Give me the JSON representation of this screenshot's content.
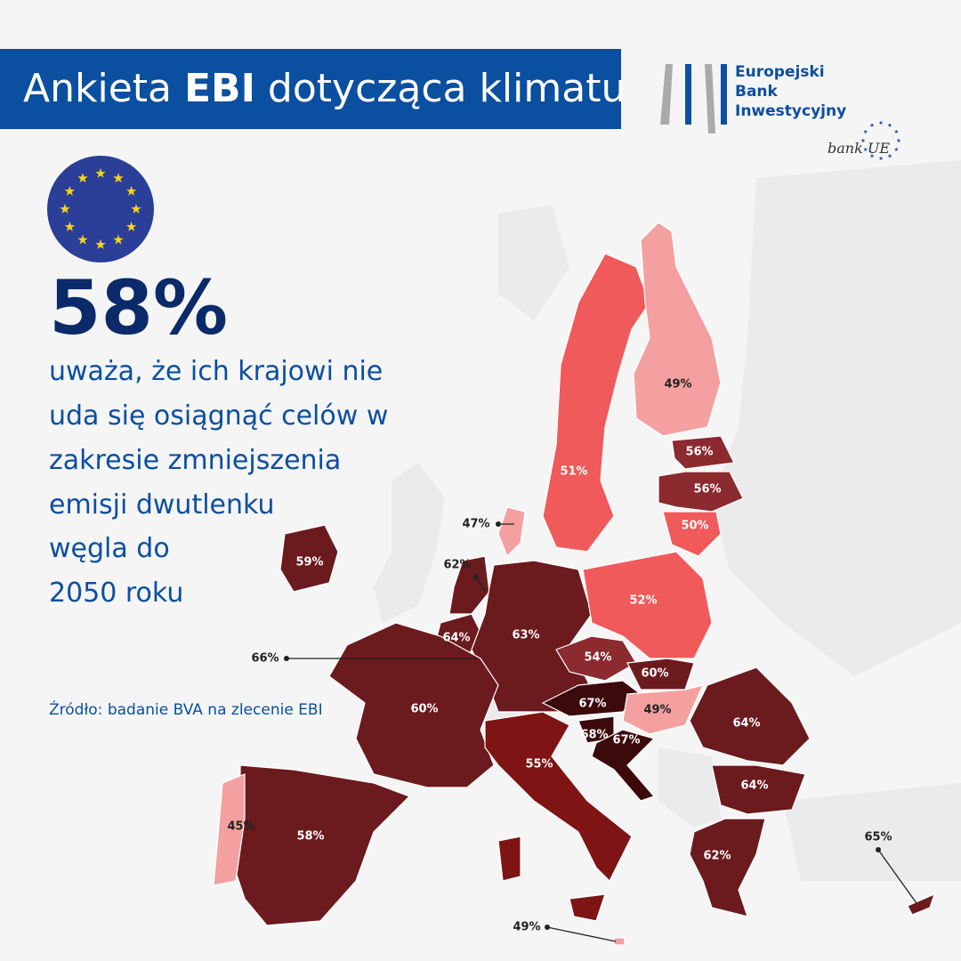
{
  "header": {
    "title_parts": [
      "Ankieta ",
      "EBI",
      " dotycząca klimatu"
    ]
  },
  "logo": {
    "lines": [
      "Europejski",
      "Bank",
      "Inwestycyjny"
    ],
    "tagline": "bank UE"
  },
  "headline": {
    "stat": "58%",
    "text_lines": [
      "uważa, że ich krajowi nie",
      "uda się osiągnąć celów w",
      "zakresie zmniejszenia",
      "emisji dwutlenku",
      "węgla do",
      "2050 roku"
    ]
  },
  "source": "Źródło: badanie BVA na zlecenie EBI",
  "regions": [
    {
      "label": "51%",
      "color": "#f05a5a"
    },
    {
      "label": "49%",
      "color": "#f4a0a0"
    },
    {
      "label": "56%",
      "color": "#8b2a2f"
    },
    {
      "label": "56%",
      "color": "#8b2a2f"
    },
    {
      "label": "50%",
      "color": "#f05a5a"
    },
    {
      "label": "47%",
      "color": "#f4a0a0"
    },
    {
      "label": "59%",
      "color": "#6b1a1e"
    },
    {
      "label": "62%",
      "color": "#6b1a1e"
    },
    {
      "label": "64%",
      "color": "#6b1a1e"
    },
    {
      "label": "66%",
      "color": "#5a1418"
    },
    {
      "label": "63%",
      "color": "#6b1a1e"
    },
    {
      "label": "52%",
      "color": "#f05a5a"
    },
    {
      "label": "54%",
      "color": "#8b2a2f"
    },
    {
      "label": "60%",
      "color": "#6b1a1e"
    },
    {
      "label": "67%",
      "color": "#3d0a0c"
    },
    {
      "label": "49%",
      "color": "#f4a0a0"
    },
    {
      "label": "68%",
      "color": "#3d0a0c"
    },
    {
      "label": "67%",
      "color": "#3d0a0c"
    },
    {
      "label": "60%",
      "color": "#6b1a1e"
    },
    {
      "label": "55%",
      "color": "#7e1414"
    },
    {
      "label": "58%",
      "color": "#6b1a1e"
    },
    {
      "label": "45%",
      "color": "#f4a0a0"
    },
    {
      "label": "64%",
      "color": "#6b1a1e"
    },
    {
      "label": "64%",
      "color": "#6b1a1e"
    },
    {
      "label": "62%",
      "color": "#6b1a1e"
    },
    {
      "label": "65%",
      "color": "#6b1a1e"
    },
    {
      "label": "49%",
      "color": "#f4a0a0"
    }
  ]
}
